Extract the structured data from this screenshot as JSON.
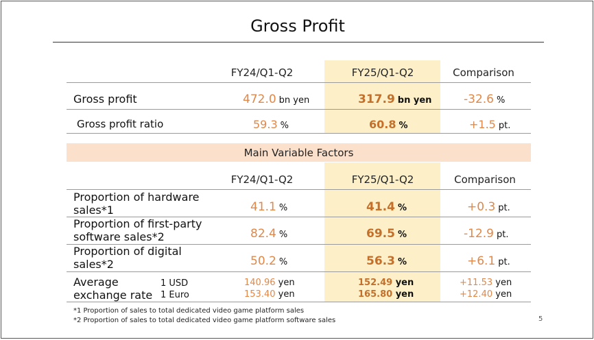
{
  "title": "Gross Profit",
  "page_number": "5",
  "columns": [
    "FY24/Q1-Q2",
    "FY25/Q1-Q2",
    "Comparison"
  ],
  "top_rows": [
    {
      "label": "Gross profit",
      "fy24": "472.0",
      "fy24_unit": "bn yen",
      "fy25": "317.9",
      "fy25_unit": "bn yen",
      "cmp": "-32.6",
      "cmp_unit": "%"
    },
    {
      "label": "Gross profit ratio",
      "fy24": "59.3",
      "fy24_unit": "%",
      "fy25": "60.8",
      "fy25_unit": "%",
      "cmp": "+1.5",
      "cmp_unit": "pt."
    }
  ],
  "section_title": "Main Variable Factors",
  "factor_rows": [
    {
      "label_line1": "Proportion of hardware",
      "label_line2": "sales*1",
      "fy24": "41.1",
      "fy24_unit": "%",
      "fy25": "41.4",
      "fy25_unit": "%",
      "cmp": "+0.3",
      "cmp_unit": "pt."
    },
    {
      "label_line1": "Proportion of first-party",
      "label_line2": "software sales*2",
      "fy24": "82.4",
      "fy24_unit": "%",
      "fy25": "69.5",
      "fy25_unit": "%",
      "cmp": "-12.9",
      "cmp_unit": "pt."
    },
    {
      "label_line1": "Proportion of digital",
      "label_line2": "sales*2",
      "fy24": "50.2",
      "fy24_unit": "%",
      "fy25": "56.3",
      "fy25_unit": "%",
      "cmp": "+6.1",
      "cmp_unit": "pt."
    }
  ],
  "fx": {
    "label_line1": "Average",
    "label_line2": "exchange rate",
    "usd_label": "1 USD",
    "euro_label": "1 Euro",
    "fy24_usd": "140.96",
    "fy24_euro": "153.40",
    "fy25_usd": "152.49",
    "fy25_euro": "165.80",
    "cmp_usd": "+11.53",
    "cmp_euro": "+12.40",
    "unit": "yen"
  },
  "footnotes": [
    "*1 Proportion of sales to total dedicated video game platform sales",
    "*2 Proportion of sales to total dedicated video game platform software sales"
  ]
}
